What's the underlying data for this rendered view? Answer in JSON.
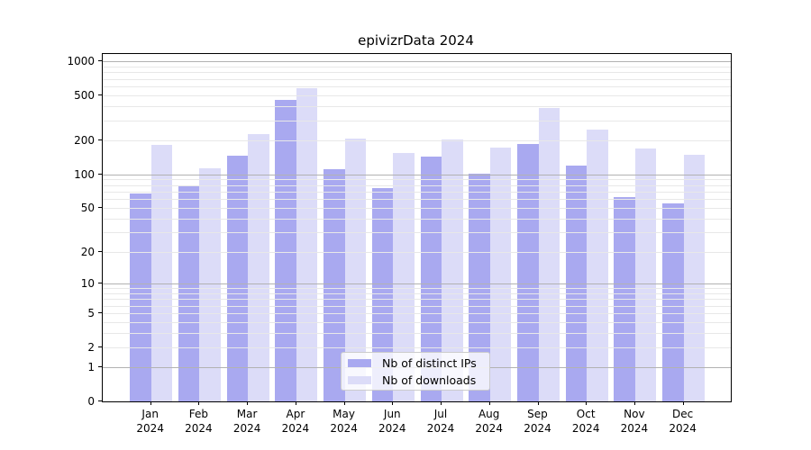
{
  "chart_data": {
    "type": "bar",
    "title": "epivizrData 2024",
    "year": "2024",
    "months": [
      "Jan",
      "Feb",
      "Mar",
      "Apr",
      "May",
      "Jun",
      "Jul",
      "Aug",
      "Sep",
      "Oct",
      "Nov",
      "Dec"
    ],
    "categories": [
      "Jan 2024",
      "Feb 2024",
      "Mar 2024",
      "Apr 2024",
      "May 2024",
      "Jun 2024",
      "Jul 2024",
      "Aug 2024",
      "Sep 2024",
      "Oct 2024",
      "Nov 2024",
      "Dec 2024"
    ],
    "series": [
      {
        "name": "Nb of distinct IPs",
        "color": "#a9a9f0",
        "values": [
          68,
          79,
          147,
          456,
          112,
          75,
          145,
          101,
          185,
          120,
          63,
          55
        ]
      },
      {
        "name": "Nb of downloads",
        "color": "#dcdcf8",
        "values": [
          183,
          114,
          226,
          576,
          206,
          155,
          203,
          173,
          387,
          248,
          169,
          150
        ]
      }
    ],
    "yscale": "log1p",
    "ylim": [
      0,
      1160
    ],
    "ytick_labels": [
      "1000",
      "500",
      "200",
      "100",
      "50",
      "20",
      "10",
      "5",
      "2",
      "1",
      "0"
    ],
    "ytick_values": [
      1000,
      500,
      200,
      100,
      50,
      20,
      10,
      5,
      2,
      1,
      0
    ],
    "grid": {
      "major_values": [
        1,
        10,
        100,
        1000
      ],
      "major_color": "#b2b2b2",
      "minor_color": "#e8e8e8",
      "orientation": "horizontal"
    },
    "legend": {
      "position": "lower-center-inside"
    }
  }
}
